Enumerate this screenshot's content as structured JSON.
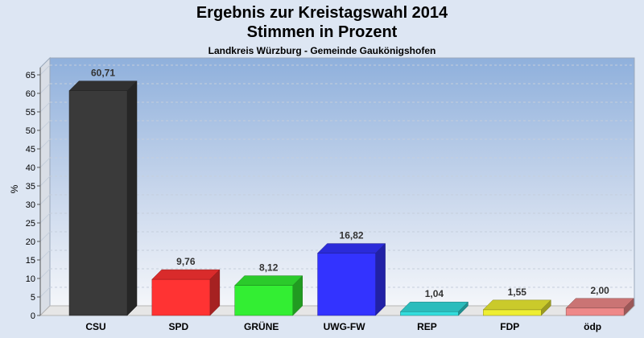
{
  "header": {
    "title_line1": "Ergebnis zur Kreistagswahl 2014",
    "title_line2": "Stimmen in Prozent",
    "subtitle": "Landkreis Würzburg - Gemeinde Gaukönigshofen"
  },
  "chart_data": {
    "type": "bar",
    "title": "Ergebnis zur Kreistagswahl 2014 Stimmen in Prozent",
    "subtitle": "Landkreis Würzburg - Gemeinde Gaukönigshofen",
    "xlabel": "",
    "ylabel": "%",
    "ylim": [
      0,
      70
    ],
    "yticks": [
      0,
      5,
      10,
      15,
      20,
      25,
      30,
      35,
      40,
      45,
      50,
      55,
      60,
      65
    ],
    "grid": true,
    "categories": [
      "CSU",
      "SPD",
      "GRÜNE",
      "UWG-FW",
      "REP",
      "FDP",
      "ödp"
    ],
    "values": [
      60.71,
      9.76,
      8.12,
      16.82,
      1.04,
      1.55,
      2.0
    ],
    "value_labels": [
      "60,71",
      "9,76",
      "8,12",
      "16,82",
      "1,04",
      "1,55",
      "2,00"
    ],
    "colors": [
      "#3a3a3a",
      "#ff3333",
      "#33ee33",
      "#3333ff",
      "#33dddd",
      "#eeee33",
      "#ee8888"
    ]
  }
}
